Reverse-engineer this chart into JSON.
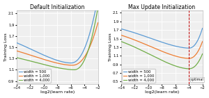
{
  "title_left": "Default Initialization",
  "title_right": "Max Update Initialization",
  "xlabel": "log2(learn rate)",
  "ylabel": "Training Loss",
  "xlim": [
    -14,
    -2
  ],
  "ylim_left": [
    0.85,
    2.15
  ],
  "ylim_right": [
    0.45,
    2.15
  ],
  "xticks": [
    -14,
    -12,
    -10,
    -8,
    -6,
    -4,
    -2
  ],
  "yticks_left": [
    0.9,
    1.1,
    1.3,
    1.5,
    1.7,
    1.9,
    2.1
  ],
  "yticks_right": [
    0.5,
    0.7,
    0.9,
    1.1,
    1.3,
    1.5,
    1.7,
    1.9,
    2.1
  ],
  "colors": [
    "#5b9bd5",
    "#ed7d31",
    "#70ad47"
  ],
  "widths": [
    "width = 500",
    "width = 1,000",
    "width = 4,000"
  ],
  "optimal_x": -4,
  "optimal_label": "optimal",
  "bg_color": "#efefef",
  "grid_color": "#ffffff",
  "line_width": 0.9,
  "font_size": 4.5,
  "title_font_size": 5.5,
  "legend_font_size": 3.8,
  "tick_font_size": 3.8
}
